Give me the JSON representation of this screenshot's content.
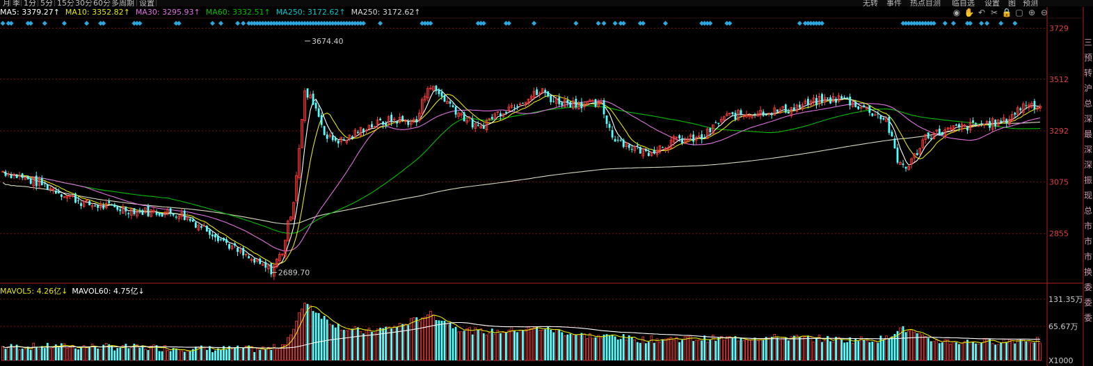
{
  "toolbar": {
    "periods": [
      "月",
      "季",
      "1分",
      "5分",
      "15分",
      "30分",
      "60分",
      "多周期",
      "设置"
    ],
    "right_tabs": [
      "无转",
      "事件",
      "热点目测",
      "临自选",
      "设置",
      "图",
      "预测"
    ],
    "tools": [
      {
        "name": "eye-icon",
        "glyph": "◉"
      },
      {
        "name": "hand-icon",
        "glyph": "✋"
      },
      {
        "name": "undo-icon",
        "glyph": "↶"
      },
      {
        "name": "scissors-icon",
        "glyph": "✂"
      },
      {
        "name": "lock-icon",
        "glyph": "🔒"
      },
      {
        "name": "square-icon",
        "glyph": "▢"
      },
      {
        "name": "zoom-in-icon",
        "glyph": "⊕"
      },
      {
        "name": "zoom-out-icon",
        "glyph": "⊖"
      }
    ]
  },
  "ma_legend": [
    {
      "label": "MA5: 3379.27↑",
      "color": "#ffffff"
    },
    {
      "label": "MA10: 3352.82↑",
      "color": "#e8e800"
    },
    {
      "label": "MA30: 3295.93↑",
      "color": "#e070e0"
    },
    {
      "label": "MA60: 3332.51↑",
      "color": "#00c000"
    },
    {
      "label": "MA250: 3172.62↑",
      "color": "#00c8c8"
    },
    {
      "label": "MA250: 3172.62↑",
      "color": "#d8d8d8"
    }
  ],
  "vol_legend": [
    {
      "label": "MAVOL5: 4.26亿↓",
      "color": "#e8e800"
    },
    {
      "label": "MAVOL60: 4.75亿↓",
      "color": "#ffffff"
    }
  ],
  "side_text": [
    "三",
    "预",
    "转",
    "沪",
    "总",
    "深",
    "最",
    "深",
    "深",
    "振",
    "现",
    "总",
    "市",
    "市",
    "市",
    "换",
    "委",
    "委",
    "委"
  ],
  "colors": {
    "up": "#ff3b3b",
    "down": "#54ffff",
    "grid": "#7a1010",
    "price_axis": "#e04040"
  },
  "chart_data": {
    "type": "candlestick",
    "price_axis": {
      "ticks": [
        3729,
        3512,
        3292,
        3075,
        2855
      ],
      "range": [
        2650,
        3760
      ]
    },
    "volume_axis": {
      "ticks": [
        "131.35万",
        "65.67万"
      ],
      "unit": "X1000",
      "max": 131.35
    },
    "annotations": [
      {
        "text": "3674.40",
        "kind": "high"
      },
      {
        "text": "2689.70",
        "kind": "low"
      }
    ],
    "anchors": [
      {
        "i": 0,
        "p": 3120,
        "v": 26
      },
      {
        "i": 15,
        "p": 3060,
        "v": 27
      },
      {
        "i": 30,
        "p": 2980,
        "v": 27
      },
      {
        "i": 50,
        "p": 2950,
        "v": 25
      },
      {
        "i": 63,
        "p": 2940,
        "v": 24
      },
      {
        "i": 75,
        "p": 2860,
        "v": 22
      },
      {
        "i": 85,
        "p": 2770,
        "v": 22
      },
      {
        "i": 92,
        "p": 2720,
        "v": 22
      },
      {
        "i": 96,
        "p": 2700,
        "v": 22
      },
      {
        "i": 100,
        "p": 2780,
        "v": 30
      },
      {
        "i": 104,
        "p": 3000,
        "v": 58
      },
      {
        "i": 108,
        "p": 3450,
        "v": 115
      },
      {
        "i": 111,
        "p": 3420,
        "v": 100
      },
      {
        "i": 116,
        "p": 3260,
        "v": 78
      },
      {
        "i": 122,
        "p": 3250,
        "v": 62
      },
      {
        "i": 130,
        "p": 3310,
        "v": 55
      },
      {
        "i": 140,
        "p": 3340,
        "v": 65
      },
      {
        "i": 148,
        "p": 3330,
        "v": 78
      },
      {
        "i": 152,
        "p": 3490,
        "v": 90
      },
      {
        "i": 156,
        "p": 3450,
        "v": 82
      },
      {
        "i": 163,
        "p": 3370,
        "v": 62
      },
      {
        "i": 170,
        "p": 3300,
        "v": 55
      },
      {
        "i": 176,
        "p": 3360,
        "v": 55
      },
      {
        "i": 185,
        "p": 3420,
        "v": 60
      },
      {
        "i": 193,
        "p": 3460,
        "v": 62
      },
      {
        "i": 197,
        "p": 3420,
        "v": 58
      },
      {
        "i": 205,
        "p": 3410,
        "v": 50
      },
      {
        "i": 214,
        "p": 3400,
        "v": 45
      },
      {
        "i": 218,
        "p": 3270,
        "v": 48
      },
      {
        "i": 224,
        "p": 3230,
        "v": 42
      },
      {
        "i": 230,
        "p": 3200,
        "v": 40
      },
      {
        "i": 240,
        "p": 3250,
        "v": 42
      },
      {
        "i": 250,
        "p": 3260,
        "v": 42
      },
      {
        "i": 258,
        "p": 3350,
        "v": 42
      },
      {
        "i": 268,
        "p": 3370,
        "v": 44
      },
      {
        "i": 280,
        "p": 3380,
        "v": 44
      },
      {
        "i": 292,
        "p": 3420,
        "v": 42
      },
      {
        "i": 300,
        "p": 3430,
        "v": 40
      },
      {
        "i": 308,
        "p": 3390,
        "v": 40
      },
      {
        "i": 316,
        "p": 3340,
        "v": 42
      },
      {
        "i": 320,
        "p": 3160,
        "v": 62
      },
      {
        "i": 324,
        "p": 3140,
        "v": 58
      },
      {
        "i": 330,
        "p": 3270,
        "v": 40
      },
      {
        "i": 340,
        "p": 3300,
        "v": 36
      },
      {
        "i": 350,
        "p": 3320,
        "v": 36
      },
      {
        "i": 358,
        "p": 3330,
        "v": 38
      },
      {
        "i": 366,
        "p": 3410,
        "v": 40
      },
      {
        "i": 370,
        "p": 3400,
        "v": 38
      }
    ],
    "markers": [
      0,
      2,
      3,
      9,
      10,
      15,
      22,
      30,
      35,
      36,
      47,
      48,
      49,
      62,
      63,
      75,
      78,
      84,
      86,
      88,
      89,
      90,
      91,
      92,
      93,
      94,
      95,
      96,
      97,
      98,
      99,
      100,
      101,
      102,
      103,
      104,
      105,
      106,
      107,
      108,
      109,
      110,
      111,
      112,
      113,
      114,
      115,
      116,
      117,
      118,
      119,
      120,
      121,
      122,
      123,
      124,
      125,
      126,
      127,
      128,
      129,
      135,
      150,
      151,
      152,
      153,
      170,
      171,
      172,
      180,
      181,
      190,
      205,
      213,
      215,
      219,
      221,
      222,
      228,
      229,
      237,
      250,
      251,
      252,
      253,
      259,
      260,
      285,
      287,
      288,
      289,
      290,
      291,
      292,
      293,
      322,
      323,
      324,
      325,
      326,
      327,
      328,
      329,
      330,
      331,
      332,
      333,
      337,
      340,
      345,
      346,
      350,
      352,
      357,
      362
    ]
  }
}
